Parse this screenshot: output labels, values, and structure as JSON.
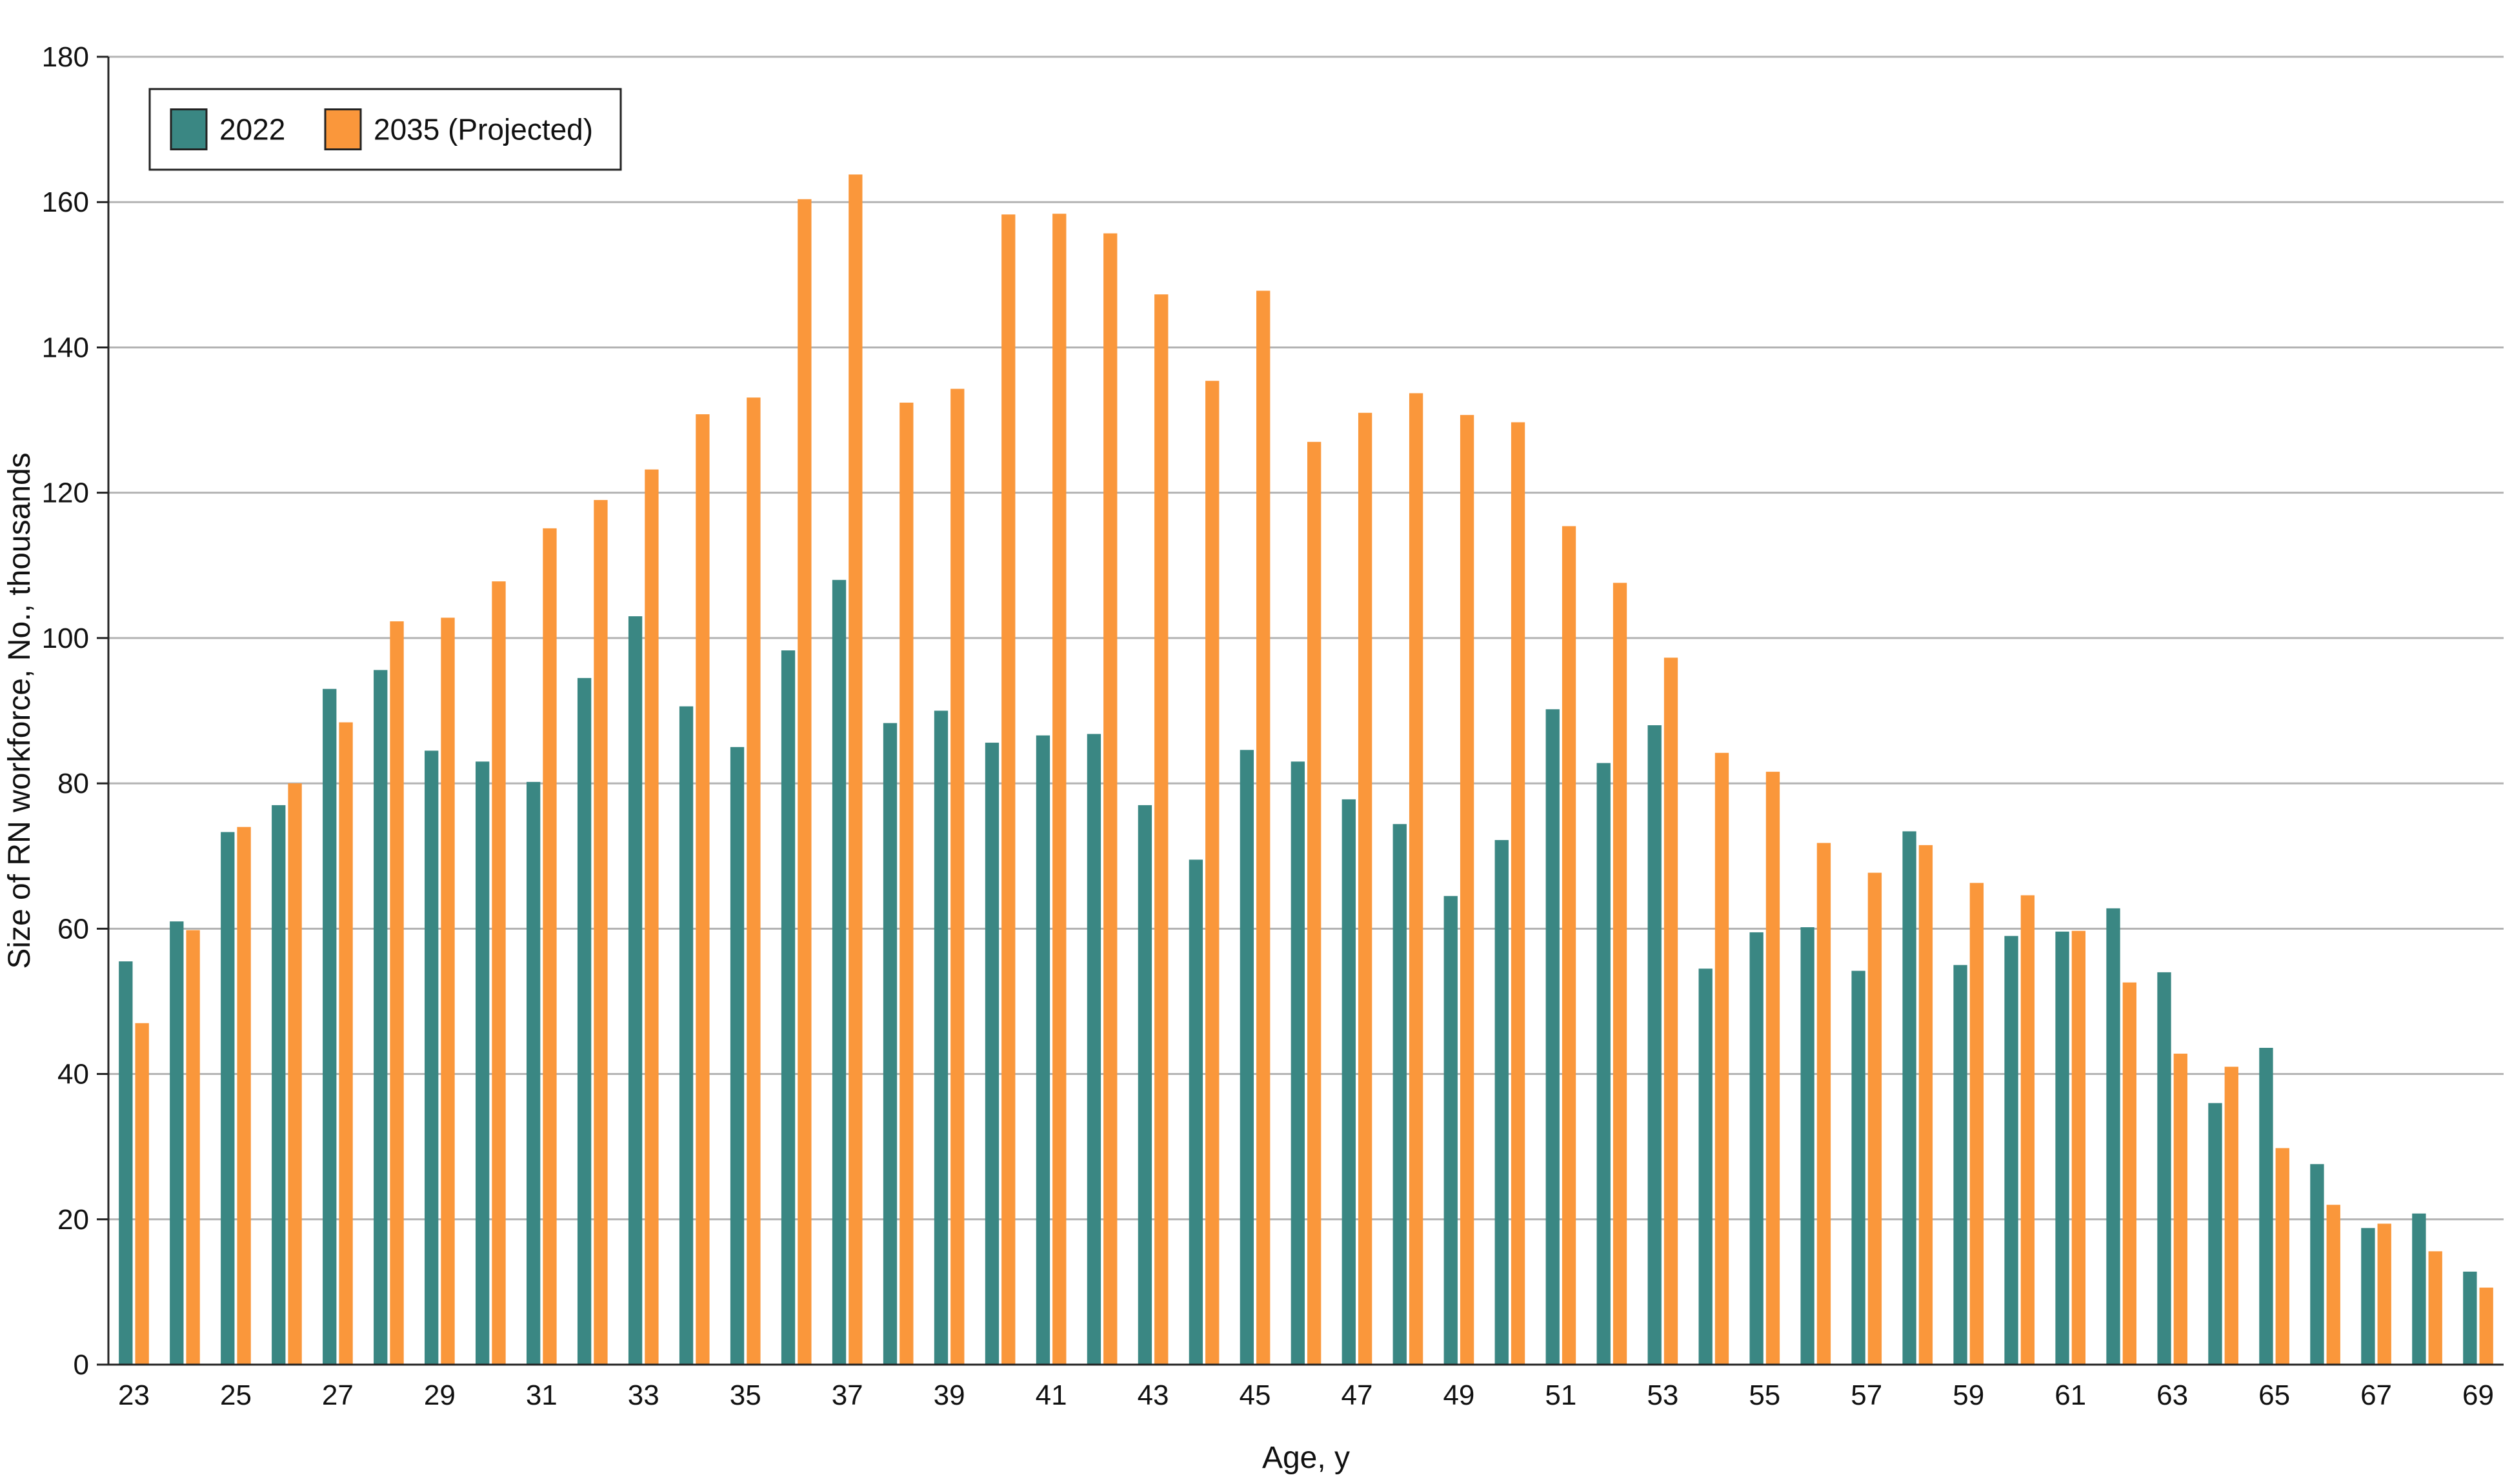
{
  "chart_data": {
    "type": "bar",
    "title": "",
    "xlabel": "Age, y",
    "ylabel": "Size of RN workforce, No., thousands",
    "ylim": [
      0,
      180
    ],
    "yticks": [
      0,
      20,
      40,
      60,
      80,
      100,
      120,
      140,
      160,
      180
    ],
    "grid": true,
    "legend_position": "top-left",
    "categories": [
      23,
      24,
      25,
      26,
      27,
      28,
      29,
      30,
      31,
      32,
      33,
      34,
      35,
      36,
      37,
      38,
      39,
      40,
      41,
      42,
      43,
      44,
      45,
      46,
      47,
      48,
      49,
      50,
      51,
      52,
      53,
      54,
      55,
      56,
      57,
      58,
      59,
      60,
      61,
      62,
      63,
      64,
      65,
      66,
      67,
      68,
      69
    ],
    "xtick_labels": [
      "23",
      "25",
      "27",
      "29",
      "31",
      "33",
      "35",
      "37",
      "39",
      "41",
      "43",
      "45",
      "47",
      "49",
      "51",
      "53",
      "55",
      "57",
      "59",
      "61",
      "63",
      "65",
      "67",
      "69"
    ],
    "series": [
      {
        "name": "2022",
        "color": "#3a8783",
        "values": [
          55.5,
          61,
          73.3,
          77,
          93,
          95.6,
          84.5,
          83,
          80.2,
          94.5,
          103,
          90.6,
          85,
          98.3,
          108,
          88.3,
          90,
          85.6,
          86.6,
          86.8,
          77,
          69.5,
          84.6,
          83,
          77.8,
          74.4,
          64.5,
          72.2,
          90.2,
          82.8,
          88,
          54.5,
          59.5,
          60.2,
          54.2,
          73.4,
          55,
          59,
          59.6,
          62.8,
          54,
          36,
          43.6,
          27.6,
          18.8,
          20.8,
          12.8
        ]
      },
      {
        "name": "2035 (Projected)",
        "color": "#fa973b",
        "values": [
          47,
          59.8,
          74,
          80,
          88.4,
          102.3,
          102.8,
          107.8,
          115.1,
          119,
          123.2,
          130.8,
          133.1,
          160.4,
          163.8,
          132.4,
          134.3,
          158.3,
          158.4,
          155.7,
          147.3,
          135.4,
          147.8,
          127,
          131,
          133.7,
          130.7,
          129.7,
          115.4,
          107.6,
          97.3,
          84.2,
          81.6,
          71.8,
          67.7,
          71.5,
          66.3,
          64.6,
          59.7,
          52.6,
          42.8,
          41,
          29.8,
          22,
          19.4,
          15.6,
          10.6
        ]
      }
    ]
  }
}
